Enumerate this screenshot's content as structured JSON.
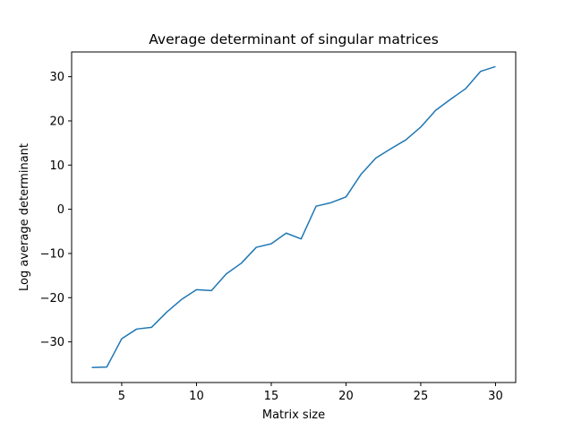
{
  "chart_data": {
    "type": "line",
    "title": "Average determinant of singular matrices",
    "xlabel": "Matrix size",
    "ylabel": "Log average determinant",
    "xlim": [
      1.65,
      31.35
    ],
    "ylim": [
      -39.2,
      35.6
    ],
    "xticks": [
      5,
      10,
      15,
      20,
      25,
      30
    ],
    "yticks": [
      -30,
      -20,
      -10,
      0,
      10,
      20,
      30
    ],
    "ytick_labels": [
      "−30",
      "−20",
      "−10",
      "0",
      "10",
      "20",
      "30"
    ],
    "grid": false,
    "legend": false,
    "series": [
      {
        "color": "#1f77b4",
        "x": [
          3,
          4,
          5,
          6,
          7,
          8,
          9,
          10,
          11,
          12,
          13,
          14,
          15,
          16,
          17,
          18,
          19,
          20,
          21,
          22,
          23,
          24,
          25,
          26,
          27,
          28,
          29,
          30
        ],
        "y": [
          -35.8,
          -35.7,
          -29.3,
          -27.1,
          -26.7,
          -23.3,
          -20.4,
          -18.2,
          -18.4,
          -14.6,
          -12.2,
          -8.6,
          -7.8,
          -5.4,
          -6.7,
          0.7,
          1.5,
          2.8,
          7.9,
          11.6,
          13.7,
          15.7,
          18.6,
          22.4,
          24.9,
          27.3,
          31.2,
          32.3
        ]
      }
    ]
  }
}
